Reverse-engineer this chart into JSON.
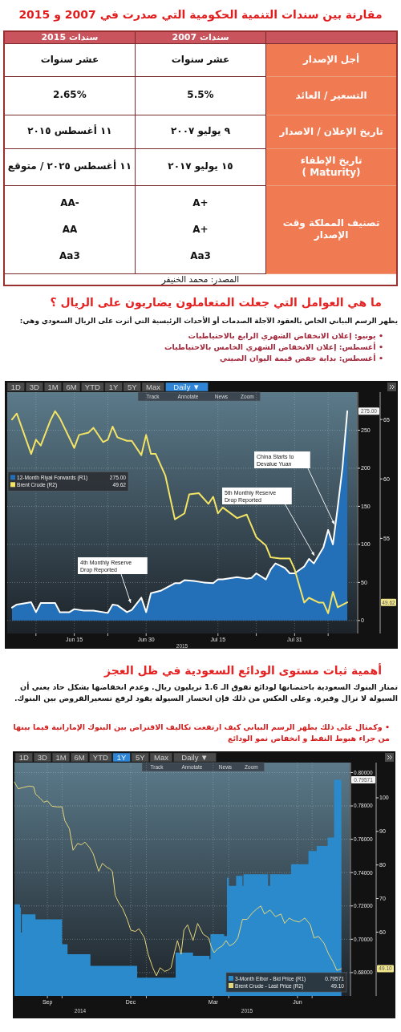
{
  "chart_data": [
    {
      "type": "other",
      "title": "مقارنة بين سندات التنمية الحكومية التي صدرت في 2007 و 2015",
      "categories": [
        "سندات 2015",
        "سندات 2007",
        null
      ],
      "y_categories": [
        "أجل الإصدار",
        "التسعير / العائد",
        "تاريخ الإعلان / الاصدار",
        "تاريخ الإطفاء\n( Maturity)",
        "تصنيف المملكة وقت الإصدار"
      ],
      "cell_labels": [
        [
          "عشر سنوات",
          "عشر سنوات"
        ],
        [
          "2.65%",
          "5.5%"
        ],
        [
          "١١ أغسطس ٢٠١٥",
          "٩ يوليو ٢٠٠٧"
        ],
        [
          "١١ أغسطس ٢٠٢٥  /  متوقع",
          "١٥ يوليو ٢٠١٧"
        ],
        [
          "AA-\nAA\nAa3",
          "A+\nA+\nAa3"
        ]
      ],
      "annotations": [
        "المصدر: محمد الخنيفر"
      ]
    },
    {
      "type": "line",
      "title": "ما هي العوامل التي جعلت المتعاملون يضاربون على الريال ؟",
      "subtitle": "يظهر الرسم البياني الخاص بالعقود الآجلة الصدمات أو الأحداث الرئيسية التي أثرت على الريال السعودي وهي:",
      "xlim": [
        "2015-06-01",
        "2015-08-13"
      ],
      "xticks": [
        {
          "value": "2015-06-07",
          "label": null
        },
        {
          "value": "2015-06-15",
          "label": "Jun 15"
        },
        {
          "value": "2015-06-22",
          "label": null
        },
        {
          "value": "2015-06-30",
          "label": "Jun 30"
        },
        {
          "value": "2015-07-15",
          "label": "Jul 15"
        },
        {
          "value": "2015-07-23",
          "label": null
        },
        {
          "value": "2015-07-31",
          "label": "Jul 31"
        },
        {
          "value": "2015-08-07",
          "label": null
        }
      ],
      "ylim": [
        -17,
        300
      ],
      "yticks": [
        0,
        50,
        100,
        150,
        200,
        250
      ],
      "y2lim": [
        47,
        67.3
      ],
      "y2ticks": [
        55,
        60,
        65
      ],
      "grid": true,
      "legend": "left",
      "series": [
        {
          "name": "12-Month Riyal Forwards (R1)",
          "color": "#2470b8",
          "type": "area",
          "axis": "y",
          "x": [
            "2015-06-02",
            "2015-06-03",
            "2015-06-06",
            "2015-06-07",
            "2015-06-08",
            "2015-06-11",
            "2015-06-12",
            "2015-06-14",
            "2015-06-15",
            "2015-06-17",
            "2015-06-19",
            "2015-06-22",
            "2015-06-23",
            "2015-06-24",
            "2015-06-26",
            "2015-06-27",
            "2015-06-29",
            "2015-06-30",
            "2015-07-01",
            "2015-07-03",
            "2015-07-06",
            "2015-07-07",
            "2015-07-08",
            "2015-07-10",
            "2015-07-12",
            "2015-07-14",
            "2015-07-15",
            "2015-07-16",
            "2015-07-19",
            "2015-07-21",
            "2015-07-22",
            "2015-07-23",
            "2015-07-25",
            "2015-07-26",
            "2015-07-27",
            "2015-07-29",
            "2015-07-30",
            "2015-07-31",
            "2015-08-02",
            "2015-08-03",
            "2015-08-04",
            "2015-08-06",
            "2015-08-07",
            "2015-08-08",
            "2015-08-09",
            "2015-08-10",
            "2015-08-11"
          ],
          "values": [
            17,
            21,
            24,
            11,
            23,
            23,
            11,
            11,
            15,
            13,
            13,
            10,
            21,
            20,
            11,
            14,
            30,
            11,
            36,
            39,
            49,
            49,
            53,
            52,
            50,
            49,
            54,
            54,
            57,
            55,
            56,
            62,
            54,
            67,
            75,
            69,
            62,
            62,
            71,
            81,
            75,
            96,
            119,
            100,
            149,
            201,
            275
          ]
        },
        {
          "name": "Brent Crude (R2)",
          "color": "#f3e466",
          "type": "line",
          "axis": "y2",
          "x": [
            "2015-06-02",
            "2015-06-03",
            "2015-06-06",
            "2015-06-07",
            "2015-06-08",
            "2015-06-10",
            "2015-06-11",
            "2015-06-12",
            "2015-06-15",
            "2015-06-16",
            "2015-06-18",
            "2015-06-19",
            "2015-06-21",
            "2015-06-22",
            "2015-06-23",
            "2015-06-24",
            "2015-06-26",
            "2015-06-27",
            "2015-06-29",
            "2015-06-30",
            "2015-07-01",
            "2015-07-02",
            "2015-07-04",
            "2015-07-06",
            "2015-07-08",
            "2015-07-09",
            "2015-07-11",
            "2015-07-13",
            "2015-07-14",
            "2015-07-15",
            "2015-07-16",
            "2015-07-19",
            "2015-07-21",
            "2015-07-23",
            "2015-07-25",
            "2015-07-26",
            "2015-07-28",
            "2015-07-30",
            "2015-07-31",
            "2015-08-02",
            "2015-08-03",
            "2015-08-05",
            "2015-08-06",
            "2015-08-07",
            "2015-08-08",
            "2015-08-09",
            "2015-08-11"
          ],
          "values": [
            65.0,
            65.5,
            62.1,
            63.3,
            62.8,
            64.9,
            65.7,
            65.1,
            62.6,
            63.7,
            63.9,
            64.3,
            63.1,
            63.3,
            64.4,
            63.5,
            63.2,
            63.2,
            62.0,
            63.7,
            62.1,
            62.1,
            60.3,
            56.6,
            57.1,
            58.7,
            58.8,
            57.9,
            58.5,
            57.1,
            57.6,
            56.7,
            57.0,
            55.1,
            54.4,
            53.4,
            53.3,
            53.3,
            52.4,
            49.6,
            50.0,
            49.6,
            49.6,
            48.7,
            50.5,
            49.2,
            49.62
          ]
        }
      ],
      "annotations": [
        "• يونيو: إعلان الانخفاض الشهري الرابع بالاحتياطيات",
        "• أغسطس: إعلان الانخفاض الشهري الخامس بالاحتياطيات",
        "• أغسطس: بداية خفض قيمة اليوان الصيني",
        "1D",
        "3D",
        "1M",
        "6M",
        "YTD",
        "1Y",
        "5Y",
        "Max",
        "Daily ▼",
        "Track",
        "Annotate",
        "News",
        "Zoom",
        "4th Monthly Reserve Drop Reported",
        "5th Monthly Reserve Drop Reported",
        "China Starts to Devalue Yuan",
        "275.00",
        "49.62",
        "275.00",
        "49.62",
        "2015"
      ]
    },
    {
      "type": "step",
      "title": "أهمية ثبات مستوى الودائع السعودية في ظل العجز",
      "subtitle": "تمتاز البنوك السعودية باحتضانها لودائع تفوق الـ 1.6 تريليون ريال. وعدم انخفاضها بشكل حاد يعني أن السيولة لا تزال وفيرة. وعلى العكس من ذلك فإن انحسار السيولة يقود لرفع تسعيرالقروض بين البنوك.",
      "xlim": [
        "2014-08-10",
        "2015-08-11"
      ],
      "xticks": [
        {
          "value": "2014-09-15",
          "label": "Sep"
        },
        {
          "value": "2014-10-01",
          "label": null
        },
        {
          "value": "2014-12-15",
          "label": "Dec"
        },
        {
          "value": "2015-01-01",
          "label": null
        },
        {
          "value": "2015-03-15",
          "label": "Mar"
        },
        {
          "value": "2015-04-01",
          "label": null
        },
        {
          "value": "2015-06-15",
          "label": "Jun"
        },
        {
          "value": "2015-07-01",
          "label": null
        }
      ],
      "ylim": [
        0.666,
        0.806
      ],
      "yticks": [
        {
          "value": 0.68,
          "label": "0.68000"
        },
        {
          "value": 0.7,
          "label": "0.70000"
        },
        {
          "value": 0.72,
          "label": "0.72000"
        },
        {
          "value": 0.74,
          "label": "0.74000"
        },
        {
          "value": 0.76,
          "label": "0.76000"
        },
        {
          "value": 0.78,
          "label": "0.78000"
        },
        {
          "value": 0.8,
          "label": "0.80000"
        }
      ],
      "y2lim": [
        41,
        110.5
      ],
      "y2ticks": [
        60,
        70,
        80,
        90,
        100
      ],
      "grid": true,
      "legend": "bottom right",
      "series": [
        {
          "name": "3-Month Eibor - Bid Price (R1)",
          "color": "#2a8acb",
          "type": "area",
          "axis": "y",
          "x": [
            "2014-08-10",
            "2014-08-16",
            "2014-08-17",
            "2014-08-18",
            "2014-09-02",
            "2014-10-01",
            "2014-10-07",
            "2014-11-01",
            "2014-12-22",
            "2015-02-02",
            "2015-02-21",
            "2015-03-11",
            "2015-03-12",
            "2015-03-27",
            "2015-03-30",
            "2015-04-01",
            "2015-04-09",
            "2015-04-16",
            "2015-04-17",
            "2015-05-14",
            "2015-05-16",
            "2015-06-08",
            "2015-06-27",
            "2015-07-06",
            "2015-07-18",
            "2015-07-25",
            "2015-08-02"
          ],
          "values": [
            0.721,
            0.719,
            0.704,
            0.715,
            0.712,
            0.697,
            0.691,
            0.684,
            0.677,
            0.692,
            0.69,
            0.688,
            0.703,
            0.702,
            0.737,
            0.732,
            0.738,
            0.732,
            0.739,
            0.732,
            0.739,
            0.745,
            0.753,
            0.756,
            0.761,
            0.7957,
            0.79571
          ]
        },
        {
          "name": "Brent Crude - Last Price (R2)",
          "color": "#e6d67a",
          "type": "line",
          "axis": "y2",
          "x": [
            "2014-08-10",
            "2014-08-14",
            "2014-08-20",
            "2014-08-26",
            "2014-08-31",
            "2014-09-02",
            "2014-09-07",
            "2014-09-11",
            "2014-09-15",
            "2014-09-20",
            "2014-09-26",
            "2014-10-01",
            "2014-10-04",
            "2014-10-09",
            "2014-10-13",
            "2014-10-18",
            "2014-10-22",
            "2014-10-26",
            "2014-10-31",
            "2014-11-04",
            "2014-11-10",
            "2014-11-14",
            "2014-11-19",
            "2014-11-22",
            "2014-11-25",
            "2014-11-28",
            "2014-12-02",
            "2014-12-06",
            "2014-12-11",
            "2014-12-15",
            "2014-12-20",
            "2014-12-24",
            "2014-12-30",
            "2015-01-03",
            "2015-01-08",
            "2015-01-12",
            "2015-01-16",
            "2015-01-21",
            "2015-01-25",
            "2015-01-28",
            "2015-02-01",
            "2015-02-04",
            "2015-02-08",
            "2015-02-11",
            "2015-02-15",
            "2015-02-18",
            "2015-02-21",
            "2015-02-26",
            "2015-03-04",
            "2015-03-10",
            "2015-03-13",
            "2015-03-16",
            "2015-03-20",
            "2015-03-25",
            "2015-03-29",
            "2015-04-02",
            "2015-04-07",
            "2015-04-11",
            "2015-04-16",
            "2015-04-21",
            "2015-04-27",
            "2015-05-02",
            "2015-05-06",
            "2015-05-10",
            "2015-05-16",
            "2015-05-22",
            "2015-05-28",
            "2015-06-01",
            "2015-06-06",
            "2015-06-11",
            "2015-06-17",
            "2015-06-23",
            "2015-06-29",
            "2015-07-03",
            "2015-07-08",
            "2015-07-14",
            "2015-07-19",
            "2015-07-24",
            "2015-07-28",
            "2015-08-02"
          ],
          "values": [
            104.7,
            102.7,
            103.1,
            103.5,
            103.3,
            101.1,
            99.9,
            98.7,
            99.1,
            97.5,
            97.3,
            97.3,
            93.2,
            90.8,
            84.4,
            86.4,
            86.0,
            86.8,
            85.2,
            83.3,
            78.1,
            80.5,
            79.3,
            78.9,
            78.1,
            71.0,
            68.7,
            67.1,
            63.9,
            60.6,
            60.2,
            61.0,
            58.3,
            53.4,
            49.4,
            47.0,
            49.4,
            48.3,
            48.7,
            49.4,
            54.3,
            57.5,
            53.4,
            60.6,
            62.2,
            59.8,
            57.5,
            62.6,
            59.4,
            58.3,
            55.5,
            53.9,
            55.1,
            55.9,
            57.5,
            55.9,
            56.7,
            58.3,
            63.8,
            63.8,
            65.8,
            67.0,
            67.8,
            65.4,
            66.6,
            64.6,
            65.4,
            62.6,
            64.2,
            63.4,
            63.0,
            64.2,
            62.2,
            58.3,
            58.7,
            56.7,
            53.5,
            51.1,
            48.6,
            49.1
          ]
        }
      ],
      "annotations": [
        "• وكمثال على ذلك يظهر الرسم البياني كيف ارتفعت تكاليف الاقتراض بين البنوك الإماراتية فيما بينها من جراء هبوط النفط و انخفاض نمو الودائع",
        "1D",
        "3D",
        "1M",
        "6M",
        "YTD",
        "1Y",
        "5Y",
        "Max",
        "Daily ▼",
        "Track",
        "Annotate",
        "News",
        "Zoom",
        "0.79571",
        "49.10",
        "0.79571",
        "49.10",
        "2014",
        "2015"
      ]
    }
  ]
}
